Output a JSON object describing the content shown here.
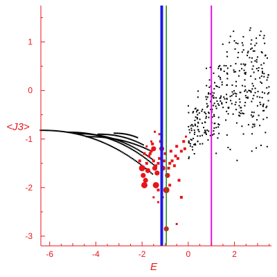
{
  "chart_data": {
    "type": "scatter",
    "xlabel": "E",
    "ylabel": "<J3>",
    "xlim": [
      -6.5,
      3.6
    ],
    "ylim": [
      -3.2,
      1.75
    ],
    "xticks": [
      -6,
      -4,
      -2,
      0,
      2
    ],
    "xtick_labels": [
      "-6",
      "-4",
      "-2",
      "0",
      "2"
    ],
    "yticks": [
      1,
      0,
      -1,
      -2,
      -3
    ],
    "ytick_labels": [
      "1",
      "0",
      "-1",
      "-2",
      "-3"
    ],
    "grid": false,
    "colors": {
      "axes": "#e8141a",
      "red_points": "#e8141a",
      "black_points": "#000000",
      "blue_line": "#1a1ae6",
      "green_line": "#1a8a1a",
      "magenta_line": "#e010e0"
    },
    "vertical_lines": [
      {
        "x": -1.15,
        "color": "#1a1ae6",
        "width": 4
      },
      {
        "x": -0.95,
        "color": "#1a8a1a",
        "width": 1.5
      },
      {
        "x": 1.0,
        "color": "#e010e0",
        "width": 2
      }
    ],
    "curves": [
      {
        "from": [
          -6.4,
          -0.82
        ],
        "to": [
          -1.55,
          -1.72
        ],
        "n": 85
      },
      {
        "from": [
          -5.2,
          -0.86
        ],
        "to": [
          -1.45,
          -1.55
        ],
        "n": 70
      },
      {
        "from": [
          -4.8,
          -0.89
        ],
        "to": [
          -1.55,
          -1.42
        ],
        "n": 60
      },
      {
        "from": [
          -4.4,
          -0.95
        ],
        "to": [
          -1.6,
          -1.25
        ],
        "n": 50
      },
      {
        "from": [
          -3.9,
          -0.9
        ],
        "to": [
          -1.95,
          -1.12
        ],
        "n": 35
      },
      {
        "from": [
          -3.2,
          -0.88
        ],
        "to": [
          -2.2,
          -0.97
        ],
        "n": 20
      }
    ],
    "red_points": [
      [
        -2.0,
        -1.6,
        5
      ],
      [
        -1.95,
        -1.75,
        4
      ],
      [
        -1.9,
        -1.95,
        5
      ],
      [
        -1.85,
        -1.85,
        4
      ],
      [
        -1.8,
        -1.5,
        3
      ],
      [
        -1.75,
        -1.65,
        4
      ],
      [
        -1.7,
        -1.35,
        3
      ],
      [
        -1.65,
        -1.3,
        3
      ],
      [
        -1.6,
        -1.25,
        3
      ],
      [
        -1.55,
        -1.1,
        3
      ],
      [
        -1.5,
        -1.2,
        4
      ],
      [
        -1.5,
        -1.45,
        3
      ],
      [
        -1.45,
        -1.6,
        4
      ],
      [
        -1.4,
        -1.55,
        3
      ],
      [
        -1.4,
        -1.95,
        5
      ],
      [
        -1.35,
        -1.7,
        4
      ],
      [
        -1.3,
        -2.05,
        3
      ],
      [
        -1.3,
        -1.5,
        3
      ],
      [
        -1.25,
        -1.4,
        3
      ],
      [
        -1.2,
        -1.05,
        3
      ],
      [
        -1.15,
        -1.2,
        4
      ],
      [
        -1.1,
        -1.6,
        4
      ],
      [
        -1.05,
        -1.45,
        3
      ],
      [
        -1.0,
        -1.3,
        3
      ],
      [
        -0.95,
        -2.05,
        5
      ],
      [
        -0.9,
        -1.75,
        4
      ],
      [
        -0.85,
        -1.6,
        3
      ],
      [
        -0.8,
        -1.5,
        3
      ],
      [
        -0.8,
        -1.95,
        3
      ],
      [
        -0.75,
        -1.25,
        3
      ],
      [
        -0.7,
        -1.45,
        3
      ],
      [
        -0.6,
        -1.55,
        3
      ],
      [
        -0.55,
        -1.35,
        3
      ],
      [
        -0.5,
        -1.15,
        3
      ],
      [
        -0.45,
        -1.4,
        3
      ],
      [
        -0.4,
        -1.85,
        3
      ],
      [
        -0.3,
        -1.25,
        3
      ],
      [
        -0.3,
        -2.2,
        3
      ],
      [
        -0.2,
        -1.05,
        3
      ],
      [
        -0.15,
        -1.2,
        3
      ],
      [
        -0.1,
        -0.95,
        2
      ],
      [
        -1.5,
        -2.2,
        2
      ],
      [
        -1.3,
        -2.3,
        2
      ],
      [
        -1.1,
        -2.2,
        2
      ],
      [
        -2.1,
        -1.45,
        3
      ],
      [
        -1.9,
        -1.3,
        3
      ],
      [
        -0.95,
        -2.85,
        4
      ],
      [
        -0.5,
        -2.75,
        2
      ],
      [
        -1.6,
        -1.05,
        2
      ],
      [
        -1.8,
        -1.15,
        2
      ],
      [
        -1.25,
        -0.9,
        2
      ],
      [
        -1.45,
        -0.85,
        2
      ]
    ],
    "black_cloud": {
      "x_range": [
        0.0,
        3.5
      ],
      "y_center": 0.05,
      "count": 380
    }
  }
}
